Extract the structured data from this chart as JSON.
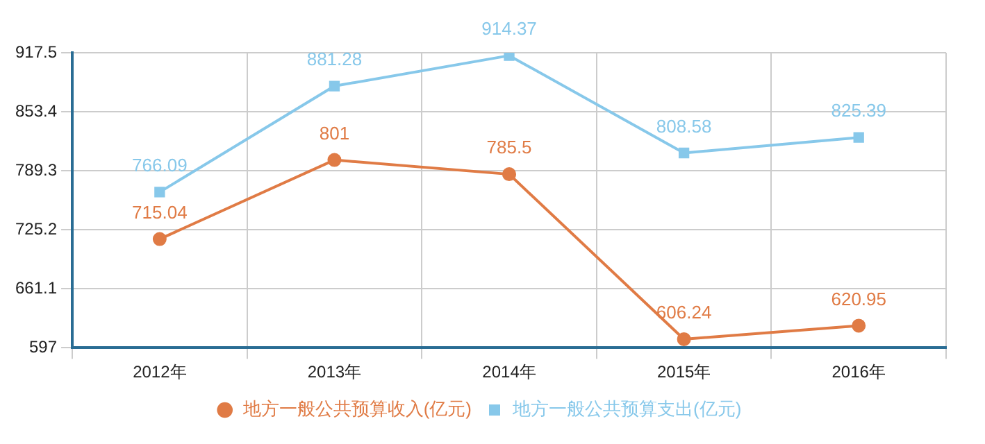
{
  "chart_data": {
    "type": "line",
    "categories": [
      "2012年",
      "2013年",
      "2014年",
      "2015年",
      "2016年"
    ],
    "series": [
      {
        "name": "地方一般公共预算收入(亿元)",
        "color": "#e07b45",
        "marker": "circle",
        "values": [
          715.04,
          801,
          785.5,
          606.24,
          620.95
        ]
      },
      {
        "name": "地方一般公共预算支出(亿元)",
        "color": "#87c8ea",
        "marker": "square",
        "values": [
          766.09,
          881.28,
          914.37,
          808.58,
          825.39
        ]
      }
    ],
    "ylim": [
      597,
      917.5
    ],
    "yticks": [
      597,
      661.1,
      725.2,
      789.3,
      853.4,
      917.5
    ],
    "grid": true,
    "legend": "bottom",
    "data_labels": true,
    "line_style": "solid"
  }
}
